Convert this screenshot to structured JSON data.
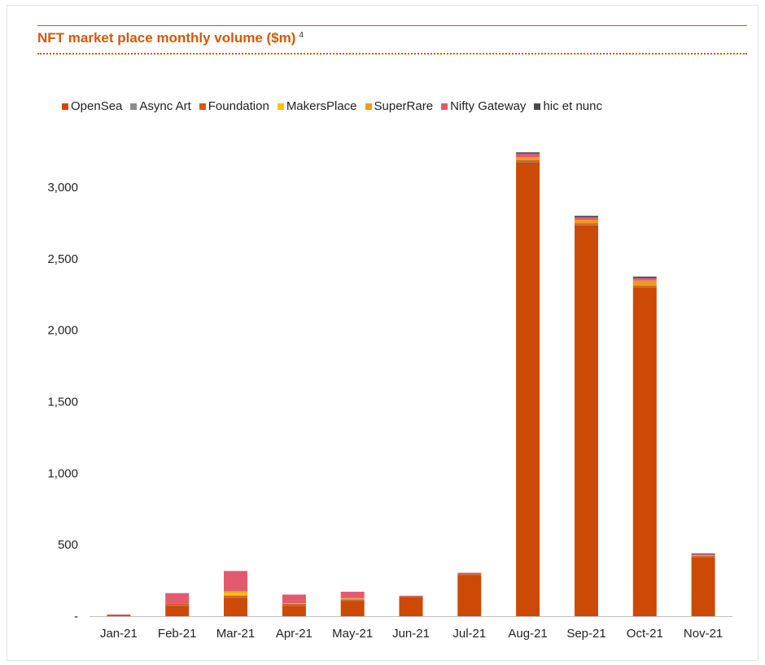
{
  "chart_data": {
    "type": "bar",
    "stacked": true,
    "title": "NFT market place monthly volume ($m)",
    "title_superscript": "4",
    "categories": [
      "Jan-21",
      "Feb-21",
      "Mar-21",
      "Apr-21",
      "May-21",
      "Jun-21",
      "Jul-21",
      "Aug-21",
      "Sep-21",
      "Oct-21",
      "Nov-21"
    ],
    "series": [
      {
        "name": "OpenSea",
        "color": "#cc4a06",
        "values": [
          8,
          75,
          130,
          75,
          110,
          135,
          290,
          3175,
          2735,
          2300,
          415
        ]
      },
      {
        "name": "Async Art",
        "color": "#8c8c8c",
        "values": [
          0,
          1,
          2,
          1,
          1,
          1,
          1,
          2,
          2,
          2,
          1
        ]
      },
      {
        "name": "Foundation",
        "color": "#d95a10",
        "values": [
          0,
          10,
          12,
          10,
          8,
          3,
          5,
          12,
          10,
          10,
          5
        ]
      },
      {
        "name": "MakersPlace",
        "color": "#f7c100",
        "values": [
          0,
          0,
          20,
          5,
          2,
          0,
          0,
          0,
          0,
          0,
          0
        ]
      },
      {
        "name": "SuperRare",
        "color": "#ef9a1e",
        "values": [
          0,
          0,
          12,
          0,
          5,
          0,
          0,
          20,
          25,
          35,
          5
        ]
      },
      {
        "name": "Nifty Gateway",
        "color": "#e35a6f",
        "values": [
          4,
          75,
          140,
          60,
          45,
          4,
          8,
          25,
          18,
          18,
          8
        ]
      },
      {
        "name": "hic et nunc",
        "color": "#4a4a52",
        "values": [
          0,
          0,
          0,
          0,
          0,
          0,
          0,
          10,
          10,
          10,
          5
        ]
      }
    ],
    "yticks": [
      0,
      500,
      1000,
      1500,
      2000,
      2500,
      3000
    ],
    "ytick_labels": [
      "-",
      "500",
      "1,000",
      "1,500",
      "2,000",
      "2,500",
      "3,000"
    ],
    "ylim": [
      0,
      3000
    ],
    "xlabel": "",
    "ylabel": "",
    "grid": false,
    "legend_position": "top"
  }
}
